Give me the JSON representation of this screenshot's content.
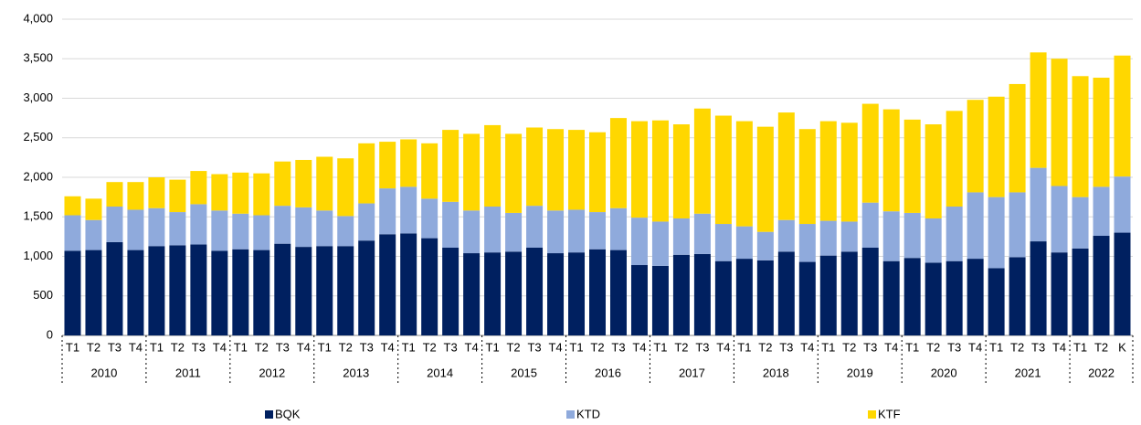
{
  "chart_data": {
    "type": "stacked_bar",
    "categories": [
      "T1",
      "T2",
      "T3",
      "T4",
      "T1",
      "T2",
      "T3",
      "T4",
      "T1",
      "T2",
      "T3",
      "T4",
      "T1",
      "T2",
      "T3",
      "T4",
      "T1",
      "T2",
      "T3",
      "T4",
      "T1",
      "T2",
      "T3",
      "T4",
      "T1",
      "T2",
      "T3",
      "T4",
      "T1",
      "T2",
      "T3",
      "T4",
      "T1",
      "T2",
      "T3",
      "T4",
      "T1",
      "T2",
      "T3",
      "T4",
      "T1",
      "T2",
      "T3",
      "T4",
      "T1",
      "T2",
      "T3",
      "T4",
      "T1",
      "T2",
      "K"
    ],
    "category_groups": [
      {
        "name": "2010",
        "size": 4
      },
      {
        "name": "2011",
        "size": 4
      },
      {
        "name": "2012",
        "size": 4
      },
      {
        "name": "2013",
        "size": 4
      },
      {
        "name": "2014",
        "size": 4
      },
      {
        "name": "2015",
        "size": 4
      },
      {
        "name": "2016",
        "size": 4
      },
      {
        "name": "2017",
        "size": 4
      },
      {
        "name": "2018",
        "size": 4
      },
      {
        "name": "2019",
        "size": 4
      },
      {
        "name": "2020",
        "size": 4
      },
      {
        "name": "2021",
        "size": 4
      },
      {
        "name": "2022",
        "size": 3
      }
    ],
    "series": [
      {
        "name": "BQK",
        "color": "#002060",
        "values": [
          1070,
          1080,
          1180,
          1080,
          1130,
          1140,
          1150,
          1070,
          1090,
          1080,
          1160,
          1120,
          1130,
          1130,
          1200,
          1280,
          1290,
          1230,
          1110,
          1040,
          1050,
          1060,
          1110,
          1040,
          1050,
          1090,
          1080,
          890,
          880,
          1020,
          1030,
          940,
          970,
          950,
          1060,
          930,
          1010,
          1060,
          1110,
          940,
          980,
          920,
          940,
          970,
          850,
          990,
          1190,
          1050,
          1100,
          1260,
          1300
        ]
      },
      {
        "name": "KTD",
        "color": "#8faadc",
        "values": [
          450,
          380,
          450,
          510,
          480,
          420,
          510,
          510,
          450,
          440,
          480,
          500,
          450,
          380,
          470,
          580,
          590,
          500,
          580,
          540,
          580,
          490,
          530,
          540,
          540,
          470,
          530,
          600,
          560,
          460,
          510,
          470,
          410,
          360,
          400,
          480,
          440,
          380,
          570,
          630,
          570,
          560,
          690,
          840,
          900,
          820,
          930,
          840,
          650,
          620,
          710
        ]
      },
      {
        "name": "KTF",
        "color": "#ffd700",
        "values": [
          240,
          270,
          310,
          350,
          390,
          410,
          420,
          460,
          520,
          530,
          560,
          600,
          680,
          730,
          760,
          590,
          600,
          700,
          910,
          970,
          1030,
          1000,
          990,
          1030,
          1010,
          1010,
          1140,
          1220,
          1280,
          1190,
          1330,
          1370,
          1330,
          1330,
          1360,
          1200,
          1260,
          1250,
          1250,
          1290,
          1180,
          1190,
          1210,
          1170,
          1270,
          1370,
          1460,
          1610,
          1530,
          1380,
          1530
        ]
      }
    ],
    "ylim": [
      0,
      4000
    ],
    "yticks": [
      0,
      500,
      {
        "value": 1000,
        "label": "1,000"
      },
      {
        "value": 1500,
        "label": "1,500"
      },
      {
        "value": 2000,
        "label": "2,000"
      },
      {
        "value": 2500,
        "label": "2,500"
      },
      {
        "value": 3000,
        "label": "3,000"
      },
      {
        "value": 3500,
        "label": "3,500"
      },
      {
        "value": 4000,
        "label": "4,000"
      }
    ],
    "grid": true,
    "legend": "bottom"
  }
}
